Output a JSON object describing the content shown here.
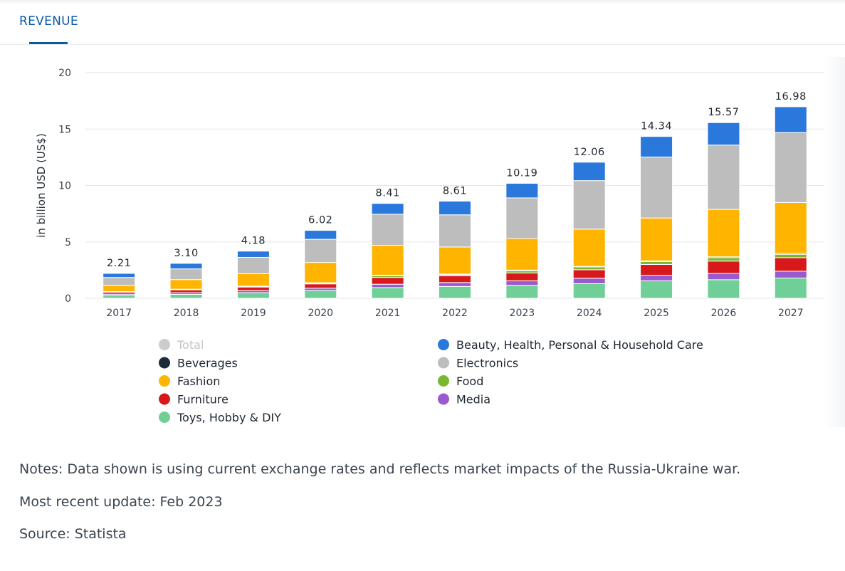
{
  "tab": {
    "label": "REVENUE"
  },
  "notes": {
    "note": "Notes: Data shown is using current exchange rates and reflects market impacts of the Russia-Ukraine war.",
    "update": "Most recent update: Feb 2023",
    "source": "Source: Statista"
  },
  "colors": {
    "accent": "#0a5aa8",
    "Toys, Hobby & DIY": "#6fcf97",
    "Media": "#9b59d0",
    "Furniture": "#d7191c",
    "Food": "#7cb82f",
    "Fashion": "#ffb400",
    "Electronics": "#bdbdbd",
    "Beverages": "#1c2a3a",
    "Beauty, Health, Personal & Household Care": "#2a78dc",
    "Total": "#c8c8c8"
  },
  "chart_data": {
    "type": "bar",
    "stacked": true,
    "title": "",
    "xlabel": "",
    "ylabel": "in billion USD (US$)",
    "ylim": [
      0,
      20
    ],
    "yticks": [
      0,
      5,
      10,
      15,
      20
    ],
    "grid": true,
    "categories": [
      "2017",
      "2018",
      "2019",
      "2020",
      "2021",
      "2022",
      "2023",
      "2024",
      "2025",
      "2026",
      "2027"
    ],
    "totals": [
      2.21,
      3.1,
      4.18,
      6.02,
      8.41,
      8.61,
      10.19,
      12.06,
      14.34,
      15.57,
      16.98
    ],
    "total_labels": [
      "2.21",
      "3.10",
      "4.18",
      "6.02",
      "8.41",
      "8.61",
      "10.19",
      "12.06",
      "14.34",
      "15.57",
      "16.98"
    ],
    "series": [
      {
        "name": "Toys, Hobby & DIY",
        "values": [
          0.25,
          0.35,
          0.5,
          0.7,
          0.95,
          1.05,
          1.15,
          1.3,
          1.55,
          1.65,
          1.8
        ]
      },
      {
        "name": "Media",
        "values": [
          0.12,
          0.15,
          0.18,
          0.2,
          0.3,
          0.35,
          0.4,
          0.48,
          0.5,
          0.55,
          0.6
        ]
      },
      {
        "name": "Furniture",
        "values": [
          0.18,
          0.25,
          0.32,
          0.38,
          0.6,
          0.6,
          0.7,
          0.75,
          0.95,
          1.1,
          1.2
        ]
      },
      {
        "name": "Food",
        "values": [
          0.03,
          0.04,
          0.05,
          0.06,
          0.15,
          0.1,
          0.2,
          0.25,
          0.25,
          0.3,
          0.3
        ]
      },
      {
        "name": "Beverages",
        "values": [
          0.02,
          0.02,
          0.03,
          0.04,
          0.05,
          0.05,
          0.05,
          0.05,
          0.07,
          0.08,
          0.09
        ]
      },
      {
        "name": "Fashion",
        "values": [
          0.55,
          0.85,
          1.1,
          1.8,
          2.65,
          2.4,
          2.8,
          3.3,
          3.8,
          4.2,
          4.5
        ]
      },
      {
        "name": "Electronics",
        "values": [
          0.7,
          0.95,
          1.45,
          2.05,
          2.75,
          2.85,
          3.6,
          4.3,
          5.4,
          5.7,
          6.2
        ]
      },
      {
        "name": "Beauty, Health, Personal & Household Care",
        "values": [
          0.36,
          0.49,
          0.55,
          0.79,
          0.96,
          1.21,
          1.29,
          1.63,
          1.82,
          1.99,
          2.29
        ]
      }
    ],
    "legend": {
      "placement": "bottom",
      "items": [
        {
          "name": "Total",
          "disabled": true
        },
        {
          "name": "Beauty, Health, Personal & Household Care",
          "disabled": false
        },
        {
          "name": "Beverages",
          "disabled": false
        },
        {
          "name": "Electronics",
          "disabled": false
        },
        {
          "name": "Fashion",
          "disabled": false
        },
        {
          "name": "Food",
          "disabled": false
        },
        {
          "name": "Furniture",
          "disabled": false
        },
        {
          "name": "Media",
          "disabled": false
        },
        {
          "name": "Toys, Hobby & DIY",
          "disabled": false
        }
      ]
    }
  }
}
